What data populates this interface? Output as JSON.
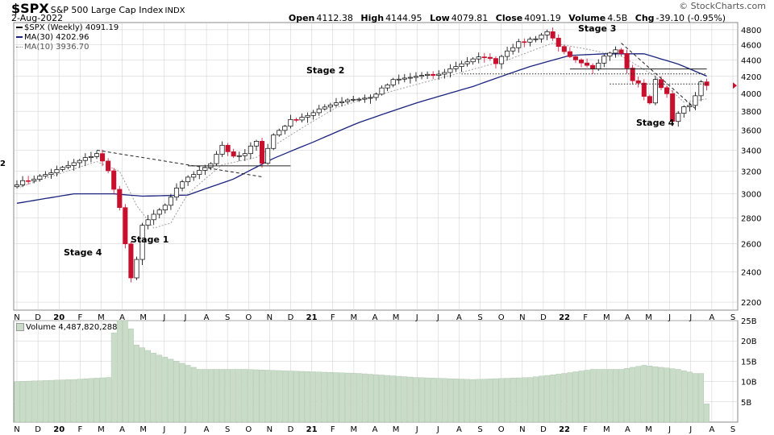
{
  "header": {
    "symbol": "$SPX",
    "name": "S&P 500 Large Cap Index",
    "exchange": "INDX",
    "date": "2-Aug-2022",
    "open_label": "Open",
    "open": "4112.38",
    "high_label": "High",
    "high": "4144.95",
    "low_label": "Low",
    "low": "4079.81",
    "close_label": "Close",
    "close": "4091.19",
    "volume_label": "Volume",
    "volume": "4.5B",
    "chg_label": "Chg",
    "chg": "-39.10 (-0.95%)",
    "logo": "© StockCharts.com"
  },
  "legend": {
    "price": "$SPX (Weekly) 4091.19",
    "ma30": "MA(30) 4202.96",
    "ma10": "MA(10) 3936.70",
    "volume": "Volume 4,487,820,288"
  },
  "colors": {
    "up": "#000000",
    "down": "#c8102e",
    "ma30": "#1a237e",
    "ma10": "#9e9e9e",
    "volume": "#c8dcc8",
    "grid": "#cccccc"
  },
  "chart_data": {
    "type": "candlestick",
    "title": "$SPX S&P 500 Large Cap Index INDX",
    "frequency": "weekly",
    "price_axis": {
      "ylim": [
        2150,
        4900
      ],
      "ticks": [
        2200,
        2400,
        2600,
        2800,
        3000,
        3200,
        3400,
        3600,
        3800,
        4000,
        4200,
        4400,
        4600,
        4800
      ],
      "scale": "log"
    },
    "x_axis": {
      "labels": [
        "N",
        "D",
        "20",
        "F",
        "M",
        "A",
        "M",
        "J",
        "J",
        "A",
        "S",
        "O",
        "N",
        "D",
        "21",
        "F",
        "M",
        "A",
        "M",
        "J",
        "J",
        "A",
        "S",
        "O",
        "N",
        "D",
        "22",
        "F",
        "M",
        "A",
        "M",
        "J",
        "J",
        "A",
        "S"
      ]
    },
    "price_waypoints": [
      {
        "week": 0,
        "close": 3090
      },
      {
        "week": 4,
        "close": 3150
      },
      {
        "week": 8,
        "close": 3230
      },
      {
        "week": 12,
        "close": 3320
      },
      {
        "week": 14,
        "close": 3370
      },
      {
        "week": 15,
        "close": 3290
      },
      {
        "week": 16,
        "close": 3200
      },
      {
        "week": 17,
        "close": 3050
      },
      {
        "week": 18,
        "close": 2880
      },
      {
        "week": 19,
        "close": 2600
      },
      {
        "week": 20,
        "close": 2350
      },
      {
        "week": 21,
        "close": 2480
      },
      {
        "week": 22,
        "close": 2750
      },
      {
        "week": 24,
        "close": 2820
      },
      {
        "week": 26,
        "close": 2900
      },
      {
        "week": 28,
        "close": 3040
      },
      {
        "week": 30,
        "close": 3150
      },
      {
        "week": 32,
        "close": 3200
      },
      {
        "week": 34,
        "close": 3280
      },
      {
        "week": 36,
        "close": 3450
      },
      {
        "week": 38,
        "close": 3330
      },
      {
        "week": 40,
        "close": 3360
      },
      {
        "week": 42,
        "close": 3500
      },
      {
        "week": 43,
        "close": 3280
      },
      {
        "week": 45,
        "close": 3550
      },
      {
        "week": 48,
        "close": 3700
      },
      {
        "week": 52,
        "close": 3780
      },
      {
        "week": 55,
        "close": 3880
      },
      {
        "week": 58,
        "close": 3930
      },
      {
        "week": 62,
        "close": 3950
      },
      {
        "week": 66,
        "close": 4150
      },
      {
        "week": 70,
        "close": 4200
      },
      {
        "week": 74,
        "close": 4220
      },
      {
        "week": 78,
        "close": 4360
      },
      {
        "week": 82,
        "close": 4450
      },
      {
        "week": 84,
        "close": 4370
      },
      {
        "week": 86,
        "close": 4530
      },
      {
        "week": 88,
        "close": 4620
      },
      {
        "week": 91,
        "close": 4690
      },
      {
        "week": 93,
        "close": 4770
      },
      {
        "week": 94,
        "close": 4700
      },
      {
        "week": 95,
        "close": 4560
      },
      {
        "week": 97,
        "close": 4430
      },
      {
        "week": 99,
        "close": 4350
      },
      {
        "week": 101,
        "close": 4300
      },
      {
        "week": 103,
        "close": 4460
      },
      {
        "week": 105,
        "close": 4550
      },
      {
        "week": 106,
        "close": 4480
      },
      {
        "week": 107,
        "close": 4310
      },
      {
        "week": 108,
        "close": 4140
      },
      {
        "week": 109,
        "close": 4120
      },
      {
        "week": 110,
        "close": 3960
      },
      {
        "week": 111,
        "close": 3900
      },
      {
        "week": 112,
        "close": 4150
      },
      {
        "week": 114,
        "close": 4000
      },
      {
        "week": 115,
        "close": 3680
      },
      {
        "week": 116,
        "close": 3790
      },
      {
        "week": 117,
        "close": 3850
      },
      {
        "week": 118,
        "close": 3880
      },
      {
        "week": 119,
        "close": 3960
      },
      {
        "week": 120,
        "close": 4130
      },
      {
        "week": 121,
        "close": 4091
      }
    ],
    "ma30_waypoints": [
      {
        "week": 0,
        "value": 2920
      },
      {
        "week": 10,
        "value": 3000
      },
      {
        "week": 17,
        "value": 3000
      },
      {
        "week": 22,
        "value": 2980
      },
      {
        "week": 30,
        "value": 2990
      },
      {
        "week": 38,
        "value": 3130
      },
      {
        "week": 45,
        "value": 3320
      },
      {
        "week": 52,
        "value": 3480
      },
      {
        "week": 60,
        "value": 3680
      },
      {
        "week": 70,
        "value": 3890
      },
      {
        "week": 80,
        "value": 4080
      },
      {
        "week": 90,
        "value": 4320
      },
      {
        "week": 97,
        "value": 4460
      },
      {
        "week": 103,
        "value": 4480
      },
      {
        "week": 110,
        "value": 4480
      },
      {
        "week": 116,
        "value": 4350
      },
      {
        "week": 121,
        "value": 4203
      }
    ],
    "ma10_waypoints": [
      {
        "week": 0,
        "value": 3050
      },
      {
        "week": 14,
        "value": 3290
      },
      {
        "week": 18,
        "value": 3200
      },
      {
        "week": 21,
        "value": 2900
      },
      {
        "week": 24,
        "value": 2720
      },
      {
        "week": 27,
        "value": 2760
      },
      {
        "week": 30,
        "value": 3000
      },
      {
        "week": 36,
        "value": 3260
      },
      {
        "week": 42,
        "value": 3330
      },
      {
        "week": 48,
        "value": 3550
      },
      {
        "week": 56,
        "value": 3840
      },
      {
        "week": 66,
        "value": 4030
      },
      {
        "week": 76,
        "value": 4210
      },
      {
        "week": 86,
        "value": 4400
      },
      {
        "week": 94,
        "value": 4620
      },
      {
        "week": 100,
        "value": 4540
      },
      {
        "week": 106,
        "value": 4450
      },
      {
        "week": 112,
        "value": 4200
      },
      {
        "week": 117,
        "value": 3900
      },
      {
        "week": 121,
        "value": 3937
      }
    ],
    "volume_axis": {
      "ylim": [
        0,
        25
      ],
      "ticks": [
        5,
        10,
        15,
        20,
        25
      ],
      "tick_labels": [
        "5B",
        "10B",
        "15B",
        "20B",
        "25B"
      ],
      "unit": "B"
    },
    "volume_waypoints": [
      {
        "week": 0,
        "value": 10
      },
      {
        "week": 10,
        "value": 10.5
      },
      {
        "week": 16,
        "value": 11
      },
      {
        "week": 17,
        "value": 22
      },
      {
        "week": 18,
        "value": 25
      },
      {
        "week": 19,
        "value": 25
      },
      {
        "week": 20,
        "value": 23
      },
      {
        "week": 21,
        "value": 19
      },
      {
        "week": 24,
        "value": 17
      },
      {
        "week": 28,
        "value": 15
      },
      {
        "week": 32,
        "value": 13
      },
      {
        "week": 40,
        "value": 13
      },
      {
        "week": 50,
        "value": 12.5
      },
      {
        "week": 60,
        "value": 12
      },
      {
        "week": 70,
        "value": 11
      },
      {
        "week": 80,
        "value": 10.5
      },
      {
        "week": 90,
        "value": 11
      },
      {
        "week": 96,
        "value": 12
      },
      {
        "week": 101,
        "value": 13
      },
      {
        "week": 106,
        "value": 13
      },
      {
        "week": 110,
        "value": 14
      },
      {
        "week": 116,
        "value": 13
      },
      {
        "week": 119,
        "value": 12
      },
      {
        "week": 120,
        "value": 12
      },
      {
        "week": 121,
        "value": 4.5
      }
    ],
    "annotations": [
      "Stage 4",
      "Stage 1",
      "Stage 2",
      "Stage 3",
      "Stage 4"
    ],
    "left_edge_mark": "2",
    "trendlines": [
      {
        "style": "dashed",
        "from": {
          "week": 14,
          "price": 3400
        },
        "to": {
          "week": 43,
          "price": 3150
        }
      },
      {
        "style": "solid",
        "from": {
          "week": 30,
          "price": 3250
        },
        "to": {
          "week": 48,
          "price": 3250
        }
      },
      {
        "style": "dashed",
        "from": {
          "week": 106,
          "price": 4620
        },
        "to": {
          "week": 119,
          "price": 3830
        }
      },
      {
        "style": "solid",
        "from": {
          "week": 97,
          "price": 4290
        },
        "to": {
          "week": 121,
          "price": 4290
        }
      },
      {
        "style": "dotted",
        "from": {
          "week": 78,
          "price": 4230
        },
        "to": {
          "week": 121,
          "price": 4230
        }
      },
      {
        "style": "dotted",
        "from": {
          "week": 104,
          "price": 4110
        },
        "to": {
          "week": 121,
          "price": 4110
        }
      }
    ]
  }
}
